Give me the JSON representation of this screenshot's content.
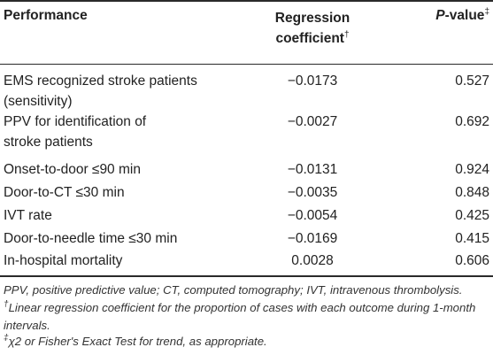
{
  "table": {
    "headers": {
      "performance": "Performance",
      "regression_line1": "Regression",
      "regression_line2": "coefficient",
      "regression_mark": "†",
      "pvalue_italic": "P",
      "pvalue_rest": "-value",
      "pvalue_mark": "‡"
    },
    "rows": [
      {
        "label_line1": "EMS recognized stroke patients",
        "label_line2": "(sensitivity)",
        "coef": "−0.0173",
        "p": "0.527"
      },
      {
        "label_line1": "PPV for identification of",
        "label_line2": "stroke patients",
        "coef": "−0.0027",
        "p": "0.692"
      },
      {
        "label_line1": "Onset-to-door ≤90 min",
        "coef": "−0.0131",
        "p": "0.924"
      },
      {
        "label_line1": "Door-to-CT ≤30 min",
        "coef": "−0.0035",
        "p": "0.848"
      },
      {
        "label_line1": "IVT rate",
        "coef": "−0.0054",
        "p": "0.425"
      },
      {
        "label_line1": "Door-to-needle time ≤30 min",
        "coef": "−0.0169",
        "p": "0.415"
      },
      {
        "label_line1": "In-hospital mortality",
        "coef": "0.0028",
        "p": "0.606"
      }
    ]
  },
  "footnotes": {
    "abbrev": "PPV, positive predictive value; CT, computed tomography; IVT, intravenous thrombolysis.",
    "dagger_mark": "†",
    "dagger_text": "Linear regression coefficient for the proportion of cases with each outcome during 1-month intervals.",
    "ddagger_mark": "‡",
    "ddagger_text": "χ2 or Fisher's Exact Test for trend, as appropriate."
  }
}
